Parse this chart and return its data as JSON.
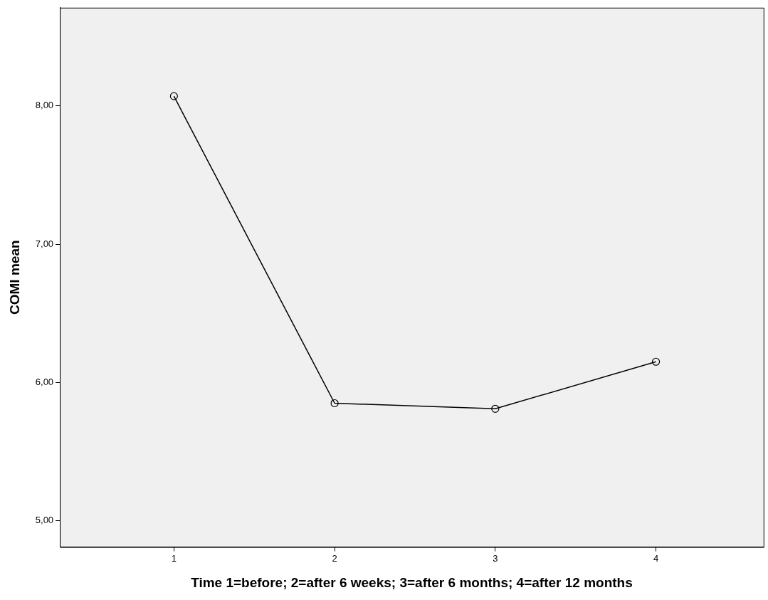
{
  "chart_data": {
    "type": "line",
    "xlabel": "Time 1=before; 2=after 6 weeks; 3=after 6 months; 4=after 12 months",
    "ylabel": "COMI mean",
    "x": [
      1,
      2,
      3,
      4
    ],
    "series": [
      {
        "color": "#000000",
        "values": [
          8.07,
          5.85,
          5.81,
          6.15
        ]
      }
    ],
    "xlim": [
      0.29,
      4.67
    ],
    "xticks": [
      1,
      2,
      3,
      4
    ],
    "ylim": [
      4.81,
      8.71
    ],
    "yticks": [
      {
        "value": 5,
        "label": "5,00"
      },
      {
        "value": 6,
        "label": "6,00"
      },
      {
        "value": 7,
        "label": "7,00"
      },
      {
        "value": 8,
        "label": "8,00"
      }
    ],
    "marker": "circle",
    "line_style": "solid",
    "grid": false,
    "legend": false
  }
}
